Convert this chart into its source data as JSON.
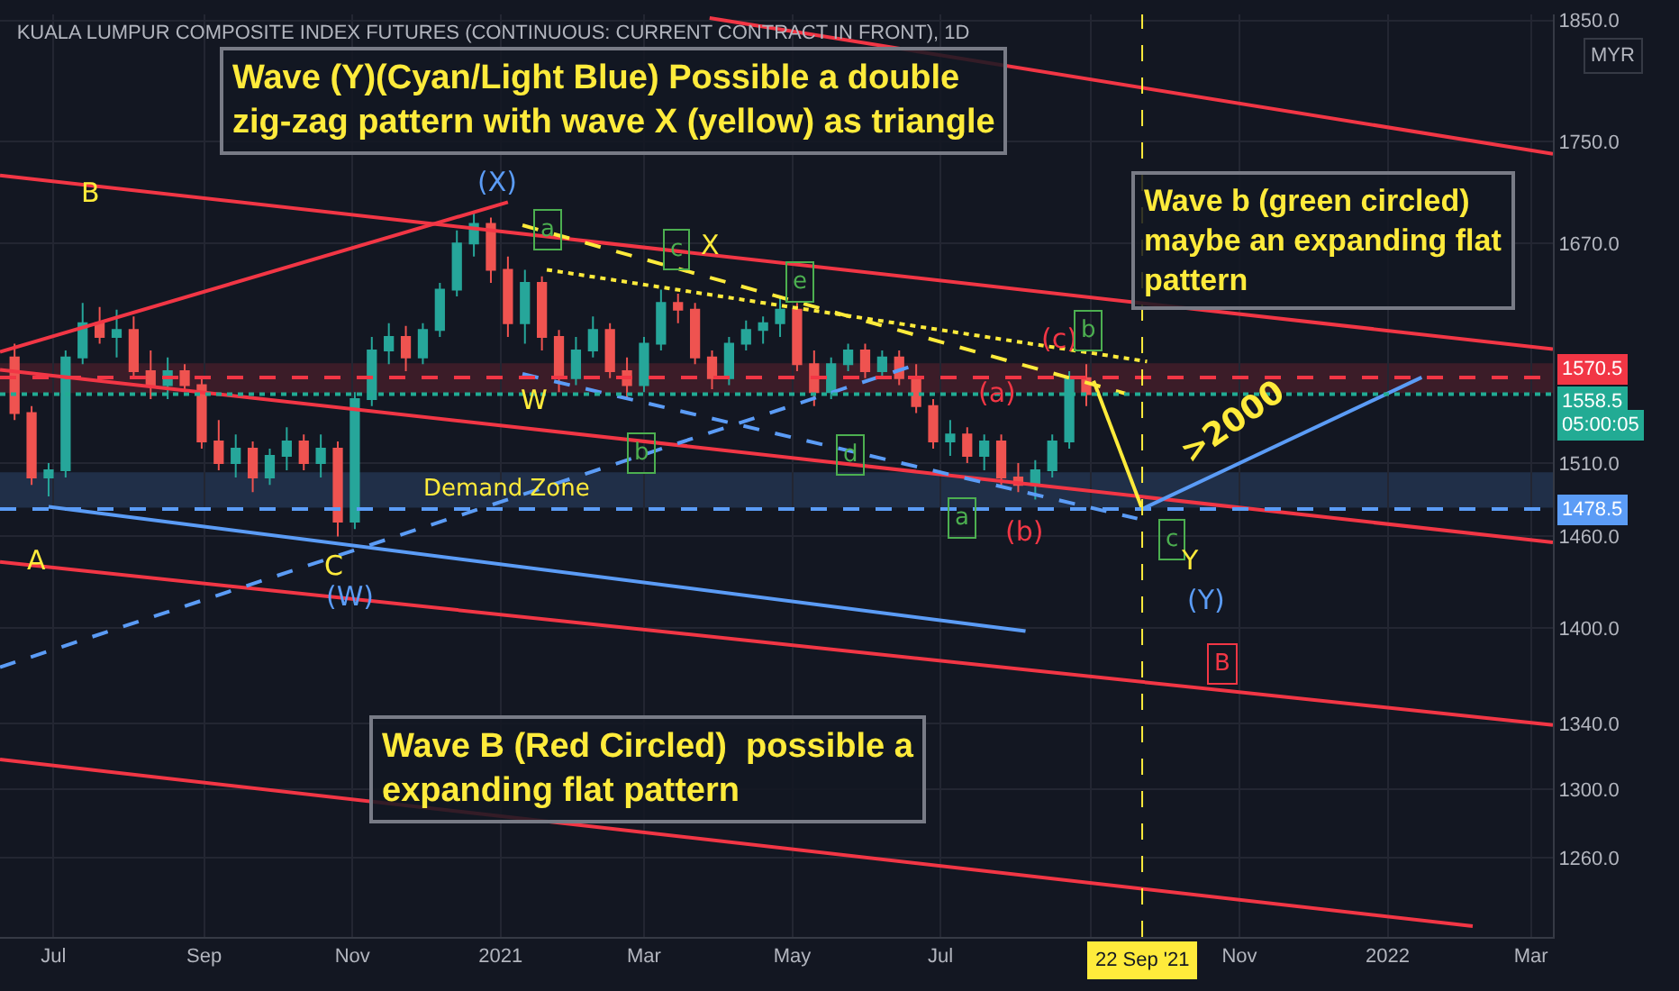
{
  "chart_data": {
    "type": "candlestick",
    "title": "KUALA LUMPUR COMPOSITE INDEX FUTURES (CONTINUOUS: CURRENT CONTRACT IN FRONT), 1D",
    "x": [
      "2020-06-15",
      "2020-06-22",
      "2020-06-29",
      "2020-07-06",
      "2020-07-13",
      "2020-07-20",
      "2020-07-27",
      "2020-08-03",
      "2020-08-10",
      "2020-08-17",
      "2020-08-24",
      "2020-08-31",
      "2020-09-07",
      "2020-09-14",
      "2020-09-21",
      "2020-09-28",
      "2020-10-05",
      "2020-10-12",
      "2020-10-19",
      "2020-10-26",
      "2020-11-02",
      "2020-11-09",
      "2020-11-16",
      "2020-11-23",
      "2020-11-30",
      "2020-12-07",
      "2020-12-14",
      "2020-12-21",
      "2020-12-28",
      "2021-01-04",
      "2021-01-11",
      "2021-01-18",
      "2021-01-25",
      "2021-02-01",
      "2021-02-08",
      "2021-02-15",
      "2021-02-22",
      "2021-03-01",
      "2021-03-08",
      "2021-03-15",
      "2021-03-22",
      "2021-03-29",
      "2021-04-05",
      "2021-04-12",
      "2021-04-19",
      "2021-04-26",
      "2021-05-03",
      "2021-05-10",
      "2021-05-17",
      "2021-05-24",
      "2021-05-31",
      "2021-06-07",
      "2021-06-14",
      "2021-06-21",
      "2021-06-28",
      "2021-07-05",
      "2021-07-12",
      "2021-07-19",
      "2021-07-26",
      "2021-08-02",
      "2021-08-09",
      "2021-08-16",
      "2021-08-23",
      "2021-08-30"
    ],
    "ohlc": [
      [
        1585,
        1595,
        1540,
        1545
      ],
      [
        1545,
        1550,
        1495,
        1500
      ],
      [
        1500,
        1510,
        1487,
        1505
      ],
      [
        1505,
        1590,
        1500,
        1585
      ],
      [
        1585,
        1625,
        1580,
        1610
      ],
      [
        1610,
        1622,
        1595,
        1600
      ],
      [
        1600,
        1620,
        1585,
        1605
      ],
      [
        1605,
        1615,
        1570,
        1575
      ],
      [
        1575,
        1590,
        1555,
        1565
      ],
      [
        1565,
        1585,
        1555,
        1575
      ],
      [
        1575,
        1580,
        1560,
        1565
      ],
      [
        1565,
        1570,
        1520,
        1525
      ],
      [
        1525,
        1540,
        1505,
        1510
      ],
      [
        1510,
        1530,
        1500,
        1520
      ],
      [
        1520,
        1525,
        1490,
        1500
      ],
      [
        1500,
        1520,
        1495,
        1515
      ],
      [
        1515,
        1535,
        1505,
        1525
      ],
      [
        1525,
        1530,
        1505,
        1510
      ],
      [
        1510,
        1530,
        1500,
        1520
      ],
      [
        1520,
        1525,
        1460,
        1470
      ],
      [
        1470,
        1560,
        1465,
        1555
      ],
      [
        1555,
        1600,
        1550,
        1590
      ],
      [
        1590,
        1610,
        1580,
        1600
      ],
      [
        1600,
        1608,
        1575,
        1585
      ],
      [
        1585,
        1610,
        1580,
        1605
      ],
      [
        1605,
        1640,
        1600,
        1635
      ],
      [
        1635,
        1680,
        1630,
        1670
      ],
      [
        1670,
        1695,
        1660,
        1685
      ],
      [
        1685,
        1690,
        1640,
        1650
      ],
      [
        1650,
        1660,
        1600,
        1610
      ],
      [
        1610,
        1650,
        1595,
        1640
      ],
      [
        1640,
        1645,
        1590,
        1600
      ],
      [
        1600,
        1605,
        1560,
        1570
      ],
      [
        1570,
        1600,
        1565,
        1590
      ],
      [
        1590,
        1615,
        1585,
        1605
      ],
      [
        1605,
        1610,
        1570,
        1575
      ],
      [
        1575,
        1585,
        1555,
        1565
      ],
      [
        1565,
        1600,
        1560,
        1595
      ],
      [
        1595,
        1635,
        1590,
        1625
      ],
      [
        1625,
        1632,
        1610,
        1620
      ],
      [
        1620,
        1625,
        1580,
        1585
      ],
      [
        1585,
        1590,
        1562,
        1570
      ],
      [
        1570,
        1600,
        1565,
        1595
      ],
      [
        1595,
        1612,
        1590,
        1605
      ],
      [
        1605,
        1615,
        1595,
        1610
      ],
      [
        1610,
        1630,
        1600,
        1620
      ],
      [
        1620,
        1625,
        1575,
        1580
      ],
      [
        1580,
        1590,
        1550,
        1560
      ],
      [
        1560,
        1585,
        1555,
        1580
      ],
      [
        1580,
        1595,
        1575,
        1590
      ],
      [
        1590,
        1595,
        1570,
        1575
      ],
      [
        1575,
        1590,
        1570,
        1585
      ],
      [
        1585,
        1590,
        1565,
        1570
      ],
      [
        1570,
        1580,
        1545,
        1550
      ],
      [
        1550,
        1555,
        1520,
        1525
      ],
      [
        1525,
        1540,
        1515,
        1530
      ],
      [
        1530,
        1535,
        1510,
        1515
      ],
      [
        1515,
        1530,
        1505,
        1525
      ],
      [
        1525,
        1530,
        1495,
        1500
      ],
      [
        1500,
        1510,
        1490,
        1495
      ],
      [
        1495,
        1512,
        1485,
        1505
      ],
      [
        1505,
        1530,
        1500,
        1525
      ],
      [
        1525,
        1575,
        1520,
        1570
      ],
      [
        1570,
        1580,
        1550,
        1558.5
      ]
    ],
    "series": [
      {
        "type": "line",
        "x": [
          "2020-06-09",
          "2022-03-10"
        ],
        "values": [
          1723,
          1591
        ],
        "color": "#f23645",
        "line_style": "solid"
      },
      {
        "type": "line",
        "x": [
          "2021-03-28",
          "2022-03-10"
        ],
        "values": [
          1852,
          1740
        ],
        "color": "#f23645",
        "line_style": "solid"
      },
      {
        "type": "line",
        "x": [
          "2020-06-09",
          "2021-01-04"
        ],
        "values": [
          1589,
          1702
        ],
        "color": "#f23645",
        "line_style": "solid"
      },
      {
        "type": "line",
        "x": [
          "2020-06-09",
          "2022-03-10"
        ],
        "values": [
          1576,
          1456
        ],
        "color": "#f23645",
        "line_style": "solid"
      },
      {
        "type": "line",
        "x": [
          "2020-06-09",
          "2022-03-10"
        ],
        "values": [
          1443,
          1339
        ],
        "color": "#f23645",
        "line_style": "solid"
      },
      {
        "type": "line",
        "x": [
          "2020-06-09",
          "2022-02-05"
        ],
        "values": [
          1318,
          1221
        ],
        "color": "#f23645",
        "line_style": "solid"
      },
      {
        "type": "line",
        "x": [
          "2020-06-29",
          "2021-08-05"
        ],
        "values": [
          1480,
          1398
        ],
        "color": "#5b9cf6",
        "line_style": "solid"
      },
      {
        "type": "line",
        "x": [
          "2020-06-09",
          "2021-06-18"
        ],
        "values": [
          1375,
          1578
        ],
        "color": "#5b9cf6",
        "line_style": "dashed"
      },
      {
        "type": "line",
        "x": [
          "2021-01-10",
          "2021-09-20"
        ],
        "values": [
          1573,
          1472
        ],
        "color": "#5b9cf6",
        "line_style": "dashed"
      },
      {
        "type": "line",
        "x": [
          "2021-01-10",
          "2021-09-15"
        ],
        "values": [
          1684,
          1559
        ],
        "color": "#ffeb3b",
        "line_style": "dashed"
      },
      {
        "type": "line",
        "x": [
          "2021-01-20",
          "2021-09-24"
        ],
        "values": [
          1650,
          1582
        ],
        "color": "#ffeb3b",
        "line_style": "dotted"
      },
      {
        "type": "line",
        "x": [
          "2021-09-02",
          "2021-09-22"
        ],
        "values": [
          1568,
          1478.5
        ],
        "color": "#ffeb3b",
        "line_style": "solid"
      },
      {
        "type": "line",
        "x": [
          "2021-09-22",
          "2022-01-15"
        ],
        "values": [
          1478.5,
          1570.5
        ],
        "color": "#5b9cf6",
        "line_style": "solid"
      }
    ],
    "xlim": [
      "2020-06-09",
      "2022-03-10"
    ],
    "xticks": [
      {
        "value": "2020-07-01",
        "label": "Jul"
      },
      {
        "value": "2020-09-01",
        "label": "Sep"
      },
      {
        "value": "2020-11-01",
        "label": "Nov"
      },
      {
        "value": "2021-01-01",
        "label": "2021"
      },
      {
        "value": "2021-03-01",
        "label": "Mar"
      },
      {
        "value": "2021-05-01",
        "label": "May"
      },
      {
        "value": "2021-07-01",
        "label": "Jul"
      },
      {
        "value": "2021-09-01",
        "label": null
      },
      {
        "value": "2021-11-01",
        "label": "Nov"
      },
      {
        "value": "2022-01-01",
        "label": "2022"
      },
      {
        "value": "2022-03-01",
        "label": "Mar"
      }
    ],
    "ylim": [
      1215,
      1855
    ],
    "yticks": [
      {
        "value": 1260,
        "label": "1260.0"
      },
      {
        "value": 1300,
        "label": "1300.0"
      },
      {
        "value": 1340,
        "label": "1340.0"
      },
      {
        "value": 1400,
        "label": "1400.0"
      },
      {
        "value": 1460,
        "label": "1460.0"
      },
      {
        "value": 1510,
        "label": "1510.0"
      },
      {
        "value": 1670,
        "label": "1670.0"
      },
      {
        "value": 1750,
        "label": "1750.0"
      },
      {
        "value": 1850,
        "label": "1850.0"
      }
    ],
    "log": true,
    "grid": true,
    "ref_lines": [
      {
        "axis": "y",
        "value": 1570.5,
        "label": "1570.5",
        "color": "#f23645",
        "line_style": "dashed"
      },
      {
        "axis": "y",
        "value": 1558.5,
        "label": "1558.5",
        "color": "#22ab94",
        "line_style": "dotted"
      },
      {
        "axis": "y",
        "value": 1478.5,
        "label": "1478.5",
        "color": "#5b9cf6",
        "line_style": "dashed"
      },
      {
        "axis": "x",
        "value": "2021-09-22",
        "label": "22 Sep '21",
        "color": "#ffeb3b",
        "line_style": "dashed"
      }
    ],
    "bands": [
      {
        "axis": "y",
        "from": 1480,
        "to": 1503,
        "label": "Demand Zone",
        "color": "#5b9cf6"
      },
      {
        "axis": "y",
        "from": 1560,
        "to": 1580,
        "color": "#f23645"
      }
    ],
    "annotations": [
      {
        "text": "A",
        "x": "2020-06-24",
        "y": 1444
      },
      {
        "text": "B",
        "x": "2020-07-16",
        "y": 1709
      },
      {
        "text": "C",
        "x": "2020-10-24",
        "y": 1440
      },
      {
        "text": "(W)",
        "x": "2020-10-31",
        "y": 1420
      },
      "(X)",
      "W",
      {
        "text": "a",
        "x": "2021-01-20",
        "y": 1681
      },
      {
        "text": "b",
        "x": "2021-02-28",
        "y": 1517
      },
      {
        "text": "c",
        "x": "2021-03-14",
        "y": 1665
      },
      {
        "text": "X",
        "x": "2021-03-28",
        "y": 1669
      },
      {
        "text": "e",
        "x": "2021-05-04",
        "y": 1641
      },
      {
        "text": "d",
        "x": "2021-05-25",
        "y": 1516
      },
      {
        "text": "a",
        "x": "2021-07-10",
        "y": 1473
      },
      {
        "text": "(a)",
        "x": "2021-07-24",
        "y": 1559
      },
      "(b)",
      {
        "text": "(c)",
        "x": "2021-08-19",
        "y": 1598
      },
      {
        "text": "b",
        "x": "2021-08-31",
        "y": 1604
      },
      {
        "text": "c",
        "x": "2021-10-04",
        "y": 1458
      },
      "Y",
      "(Y)",
      {
        "text": "B",
        "x": "2021-10-25",
        "y": 1377
      },
      "Wave (Y)(Cyan/Light Blue) Possible a double\nzig-zag pattern with wave X (yellow) as triangle",
      "Wave b (green circled)\nmaybe an expanding flat\npattern",
      "Wave B (Red Circled)  possible a\nexpanding flat pattern",
      ">2000",
      "05:00:05",
      "MYR"
    ]
  }
}
